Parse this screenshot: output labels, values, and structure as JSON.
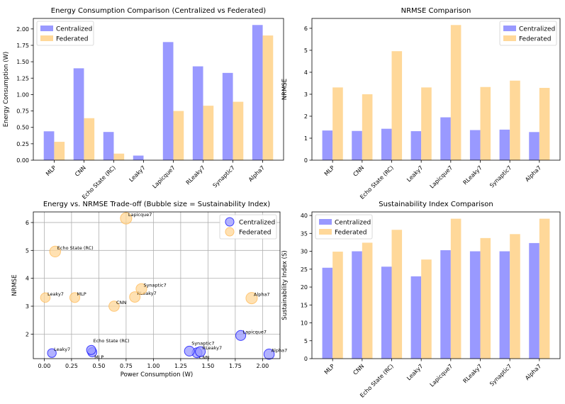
{
  "colors": {
    "centralized": "#9999ff",
    "federated": "#ffd899",
    "centralized_edge": "#0000ff",
    "federated_edge": "#ffb347"
  },
  "chart_data": [
    {
      "type": "bar",
      "title": "Energy Consumption Comparison (Centralized vs Federated)",
      "ylabel": "Energy Consumption (W)",
      "xlabel": "",
      "categories": [
        "MLP",
        "CNN",
        "Echo State (RC)",
        "Leaky7",
        "Lapicque7",
        "RLeaky7",
        "Synaptic7",
        "Alpha7"
      ],
      "series": [
        {
          "name": "Centralized",
          "values": [
            0.44,
            1.4,
            0.43,
            0.07,
            1.8,
            1.43,
            1.33,
            2.06
          ]
        },
        {
          "name": "Federated",
          "values": [
            0.28,
            0.64,
            0.1,
            0.0,
            0.75,
            0.83,
            0.89,
            1.9
          ]
        }
      ],
      "ylim": [
        0,
        2.16
      ],
      "yticks": [
        0.0,
        0.25,
        0.5,
        0.75,
        1.0,
        1.25,
        1.5,
        1.75,
        2.0
      ],
      "ytick_labels": [
        "0.00",
        "0.25",
        "0.50",
        "0.75",
        "1.00",
        "1.25",
        "1.50",
        "1.75",
        "2.00"
      ],
      "legend": "top-left"
    },
    {
      "type": "bar",
      "title": "NRMSE Comparison",
      "ylabel": "NRMSE",
      "xlabel": "",
      "categories": [
        "MLP",
        "CNN",
        "Echo State (RC)",
        "Leaky7",
        "Lapicque7",
        "RLeaky7",
        "Synaptic7",
        "Alpha7"
      ],
      "series": [
        {
          "name": "Centralized",
          "values": [
            1.35,
            1.33,
            1.43,
            1.32,
            1.95,
            1.37,
            1.39,
            1.28
          ]
        },
        {
          "name": "Federated",
          "values": [
            3.31,
            3.0,
            4.96,
            3.31,
            6.15,
            3.33,
            3.62,
            3.29
          ]
        }
      ],
      "ylim": [
        0,
        6.45
      ],
      "yticks": [
        0,
        1,
        2,
        3,
        4,
        5,
        6
      ],
      "ytick_labels": [
        "0",
        "1",
        "2",
        "3",
        "4",
        "5",
        "6"
      ],
      "legend": "top-right"
    },
    {
      "type": "scatter",
      "title": "Energy vs. NRMSE Trade-off (Bubble size = Sustainability Index)",
      "xlabel": "Power Consumption (W)",
      "ylabel": "NRMSE",
      "xlim": [
        -0.1,
        2.16
      ],
      "ylim": [
        1.12,
        6.38
      ],
      "xticks": [
        0.0,
        0.25,
        0.5,
        0.75,
        1.0,
        1.25,
        1.5,
        1.75,
        2.0
      ],
      "xtick_labels": [
        "0.00",
        "0.25",
        "0.50",
        "0.75",
        "1.00",
        "1.25",
        "1.50",
        "1.75",
        "2.00"
      ],
      "yticks": [
        2,
        3,
        4,
        5,
        6
      ],
      "ytick_labels": [
        "2",
        "3",
        "4",
        "5",
        "6"
      ],
      "grid": true,
      "legend": "top-right",
      "series": [
        {
          "name": "Centralized",
          "points": [
            {
              "label": "MLP",
              "x": 0.44,
              "y": 1.35,
              "size": 25.4
            },
            {
              "label": "CNN",
              "x": 1.4,
              "y": 1.33,
              "size": 30.0
            },
            {
              "label": "Echo State (RC)",
              "x": 0.43,
              "y": 1.43,
              "size": 25.7
            },
            {
              "label": "Leaky7",
              "x": 0.07,
              "y": 1.32,
              "size": 23.0
            },
            {
              "label": "Lapicque7",
              "x": 1.8,
              "y": 1.95,
              "size": 30.3
            },
            {
              "label": "RLeaky7",
              "x": 1.43,
              "y": 1.37,
              "size": 30.0
            },
            {
              "label": "Synaptic7",
              "x": 1.33,
              "y": 1.39,
              "size": 30.0
            },
            {
              "label": "Alpha7",
              "x": 2.06,
              "y": 1.28,
              "size": 32.3
            }
          ]
        },
        {
          "name": "Federated",
          "points": [
            {
              "label": "MLP",
              "x": 0.28,
              "y": 3.31,
              "size": 29.9
            },
            {
              "label": "CNN",
              "x": 0.64,
              "y": 3.0,
              "size": 32.4
            },
            {
              "label": "Echo State (RC)",
              "x": 0.1,
              "y": 4.96,
              "size": 36.0
            },
            {
              "label": "Leaky7",
              "x": 0.01,
              "y": 3.31,
              "size": 27.7
            },
            {
              "label": "Lapicque7",
              "x": 0.75,
              "y": 6.15,
              "size": 39.1
            },
            {
              "label": "RLeaky7",
              "x": 0.83,
              "y": 3.33,
              "size": 33.7
            },
            {
              "label": "Synaptic7",
              "x": 0.89,
              "y": 3.62,
              "size": 34.8
            },
            {
              "label": "Alpha7",
              "x": 1.9,
              "y": 3.29,
              "size": 39.1
            }
          ]
        }
      ]
    },
    {
      "type": "bar",
      "title": "Sustainability Index Comparison",
      "ylabel": "Sustainability Index (S)",
      "xlabel": "",
      "categories": [
        "MLP",
        "CNN",
        "Echo State (RC)",
        "Leaky7",
        "Lapicque7",
        "RLeaky7",
        "Synaptic7",
        "Alpha7"
      ],
      "series": [
        {
          "name": "Centralized",
          "values": [
            25.4,
            30.0,
            25.7,
            23.0,
            30.3,
            30.0,
            30.0,
            32.3
          ]
        },
        {
          "name": "Federated",
          "values": [
            29.9,
            32.4,
            36.0,
            27.7,
            39.1,
            33.7,
            34.8,
            39.1
          ]
        }
      ],
      "ylim": [
        0,
        41
      ],
      "yticks": [
        0,
        5,
        10,
        15,
        20,
        25,
        30,
        35,
        40
      ],
      "ytick_labels": [
        "0",
        "5",
        "10",
        "15",
        "20",
        "25",
        "30",
        "35",
        "40"
      ],
      "legend": "top-left"
    }
  ]
}
